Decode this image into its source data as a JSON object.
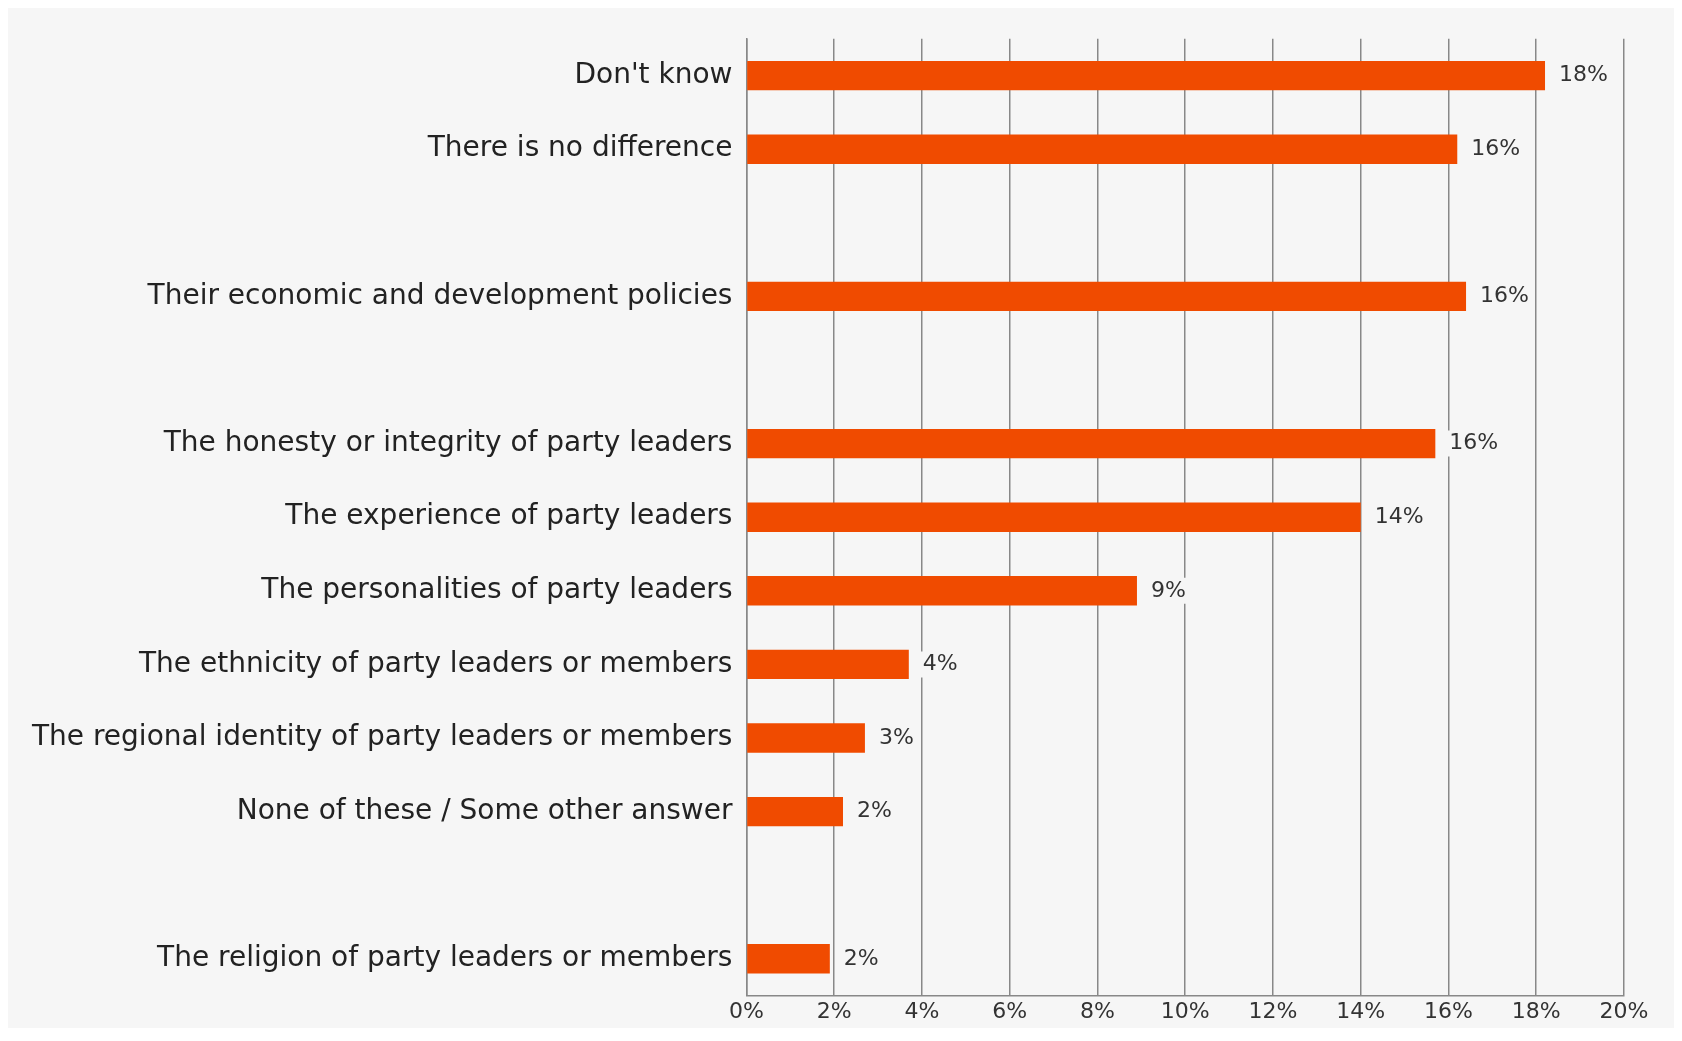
{
  "chart_data": {
    "type": "bar",
    "orientation": "horizontal",
    "categories": [
      "Don't know",
      "There is no difference",
      null,
      "Their economic and development policies",
      null,
      "The honesty or integrity of party leaders",
      "The experience of party leaders",
      "The personalities of party leaders",
      "The ethnicity of party leaders or members",
      "The regional identity of party leaders or members",
      "None of these / Some other answer",
      null,
      "The religion of party leaders or members"
    ],
    "values": [
      18.2,
      16.2,
      null,
      16.4,
      null,
      15.7,
      14.0,
      8.9,
      3.7,
      2.7,
      2.2,
      null,
      1.9
    ],
    "value_labels": [
      "18%",
      "16%",
      null,
      "16%",
      null,
      "16%",
      "14%",
      "9%",
      "4%",
      "3%",
      "2%",
      null,
      "2%"
    ],
    "color": "#f04b00",
    "xlim": [
      0,
      20
    ],
    "xticks": [
      {
        "value": 0,
        "label": "0%"
      },
      {
        "value": 2,
        "label": "2%"
      },
      {
        "value": 4,
        "label": "4%"
      },
      {
        "value": 6,
        "label": "6%"
      },
      {
        "value": 8,
        "label": "8%"
      },
      {
        "value": 10,
        "label": "10%"
      },
      {
        "value": 12,
        "label": "12%"
      },
      {
        "value": 14,
        "label": "14%"
      },
      {
        "value": 16,
        "label": "16%"
      },
      {
        "value": 18,
        "label": "18%"
      },
      {
        "value": 20,
        "label": "20%"
      }
    ],
    "grid": "x"
  }
}
